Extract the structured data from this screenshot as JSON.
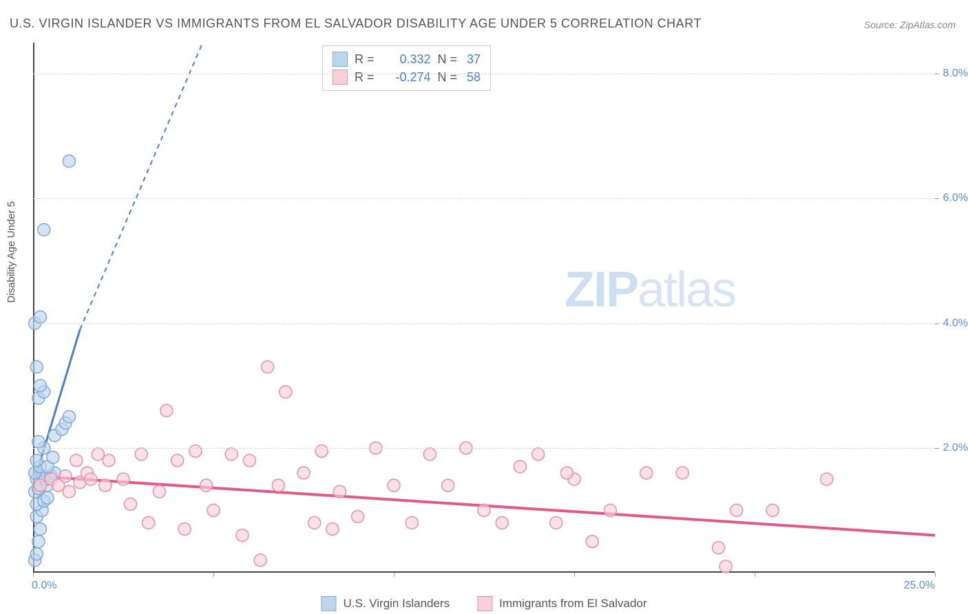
{
  "title": "U.S. VIRGIN ISLANDER VS IMMIGRANTS FROM EL SALVADOR DISABILITY AGE UNDER 5 CORRELATION CHART",
  "source_label": "Source:",
  "source_name": "ZipAtlas.com",
  "y_axis_label": "Disability Age Under 5",
  "watermark_zip": "ZIP",
  "watermark_atlas": "atlas",
  "chart": {
    "type": "scatter",
    "xlim": [
      0,
      25
    ],
    "ylim": [
      0,
      8.5
    ],
    "x_ticks": [
      0,
      5,
      10,
      15,
      20,
      25
    ],
    "x_tick_labels": [
      "0.0%",
      "",
      "",
      "",
      "",
      "25.0%"
    ],
    "y_ticks": [
      2,
      4,
      6,
      8
    ],
    "y_tick_labels": [
      "2.0%",
      "4.0%",
      "6.0%",
      "8.0%"
    ],
    "grid_color": "#d8d8d8",
    "axis_color": "#444444",
    "plot_bg": "#ffffff",
    "series": [
      {
        "key": "usvi",
        "label": "U.S. Virgin Islanders",
        "color_fill": "#bdd5ed",
        "color_stroke": "#7fa9d6",
        "marker_r": 9,
        "r_value": "0.332",
        "n_value": "37",
        "trend": {
          "x1": 0.05,
          "y1": 1.5,
          "x2_solid": 1.3,
          "y2_solid": 3.9,
          "x2_dash": 4.7,
          "y2_dash": 8.5,
          "color": "#4a7fc9",
          "width": 3
        },
        "points": [
          [
            0.05,
            0.2
          ],
          [
            0.1,
            0.3
          ],
          [
            0.15,
            0.5
          ],
          [
            0.2,
            0.7
          ],
          [
            0.1,
            0.9
          ],
          [
            0.25,
            1.0
          ],
          [
            0.1,
            1.1
          ],
          [
            0.3,
            1.15
          ],
          [
            0.05,
            1.3
          ],
          [
            0.15,
            1.35
          ],
          [
            0.2,
            1.4
          ],
          [
            0.4,
            1.4
          ],
          [
            0.1,
            1.5
          ],
          [
            0.35,
            1.5
          ],
          [
            0.3,
            1.55
          ],
          [
            0.5,
            1.55
          ],
          [
            0.05,
            1.6
          ],
          [
            0.6,
            1.6
          ],
          [
            0.2,
            1.7
          ],
          [
            0.4,
            1.7
          ],
          [
            0.1,
            1.8
          ],
          [
            0.55,
            1.85
          ],
          [
            0.3,
            2.0
          ],
          [
            0.15,
            2.1
          ],
          [
            0.6,
            2.2
          ],
          [
            0.8,
            2.3
          ],
          [
            0.9,
            2.4
          ],
          [
            1.0,
            2.5
          ],
          [
            0.15,
            2.8
          ],
          [
            0.3,
            2.9
          ],
          [
            0.2,
            3.0
          ],
          [
            0.1,
            3.3
          ],
          [
            0.05,
            4.0
          ],
          [
            0.2,
            4.1
          ],
          [
            0.3,
            5.5
          ],
          [
            1.0,
            6.6
          ],
          [
            0.4,
            1.2
          ]
        ]
      },
      {
        "key": "elsalv",
        "label": "Immigrants from El Salvador",
        "color_fill": "#f7d0da",
        "color_stroke": "#e890aa",
        "marker_r": 9,
        "r_value": "-0.274",
        "n_value": "58",
        "trend": {
          "x1": 0,
          "y1": 1.55,
          "x2_solid": 25,
          "y2_solid": 0.6,
          "color": "#e05a86",
          "width": 4
        },
        "points": [
          [
            0.2,
            1.4
          ],
          [
            0.5,
            1.5
          ],
          [
            0.7,
            1.4
          ],
          [
            0.9,
            1.55
          ],
          [
            1.0,
            1.3
          ],
          [
            1.2,
            1.8
          ],
          [
            1.3,
            1.45
          ],
          [
            1.5,
            1.6
          ],
          [
            1.6,
            1.5
          ],
          [
            1.8,
            1.9
          ],
          [
            2.0,
            1.4
          ],
          [
            2.1,
            1.8
          ],
          [
            2.5,
            1.5
          ],
          [
            2.7,
            1.1
          ],
          [
            3.0,
            1.9
          ],
          [
            3.2,
            0.8
          ],
          [
            3.5,
            1.3
          ],
          [
            3.7,
            2.6
          ],
          [
            4.0,
            1.8
          ],
          [
            4.2,
            0.7
          ],
          [
            4.5,
            1.95
          ],
          [
            4.8,
            1.4
          ],
          [
            5.0,
            1.0
          ],
          [
            5.5,
            1.9
          ],
          [
            5.8,
            0.6
          ],
          [
            6.0,
            1.8
          ],
          [
            6.3,
            0.2
          ],
          [
            6.5,
            3.3
          ],
          [
            6.8,
            1.4
          ],
          [
            7.0,
            2.9
          ],
          [
            7.5,
            1.6
          ],
          [
            7.8,
            0.8
          ],
          [
            8.0,
            1.95
          ],
          [
            8.3,
            0.7
          ],
          [
            8.5,
            1.3
          ],
          [
            9.0,
            0.9
          ],
          [
            9.5,
            2.0
          ],
          [
            10.0,
            1.4
          ],
          [
            10.5,
            0.8
          ],
          [
            11.0,
            1.9
          ],
          [
            11.5,
            1.4
          ],
          [
            12.0,
            2.0
          ],
          [
            12.5,
            1.0
          ],
          [
            13.0,
            0.8
          ],
          [
            13.5,
            1.7
          ],
          [
            14.0,
            1.9
          ],
          [
            14.5,
            0.8
          ],
          [
            15.0,
            1.5
          ],
          [
            15.5,
            0.5
          ],
          [
            16.0,
            1.0
          ],
          [
            17.0,
            1.6
          ],
          [
            18.0,
            1.6
          ],
          [
            19.0,
            0.4
          ],
          [
            19.5,
            1.0
          ],
          [
            20.5,
            1.0
          ],
          [
            22.0,
            1.5
          ],
          [
            19.2,
            0.1
          ],
          [
            14.8,
            1.6
          ]
        ]
      }
    ]
  },
  "legend_corr_r_label": "R  =",
  "legend_corr_n_label": "N  =",
  "colors": {
    "tick_label": "#5b8fd6",
    "title_text": "#555555",
    "corr_value": "#4a7fc9"
  }
}
